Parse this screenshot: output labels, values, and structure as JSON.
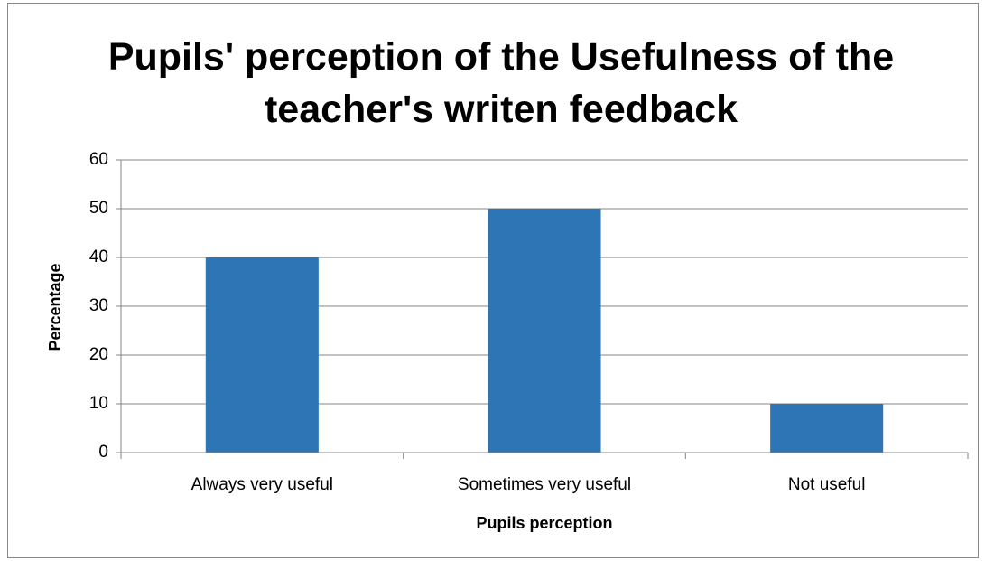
{
  "chart_data": {
    "type": "bar",
    "title": "Pupils' perception of the Usefulness of the teacher's writen feedback",
    "x_label": "Pupils perception",
    "y_label": "Percentage",
    "categories": [
      "Always very useful",
      "Sometimes very useful",
      "Not useful"
    ],
    "values": [
      40,
      50,
      10
    ],
    "color": "#2e75b6",
    "ylim": [
      0,
      60
    ],
    "yticks": [
      0,
      10,
      20,
      30,
      40,
      50,
      60
    ],
    "grid": true
  }
}
